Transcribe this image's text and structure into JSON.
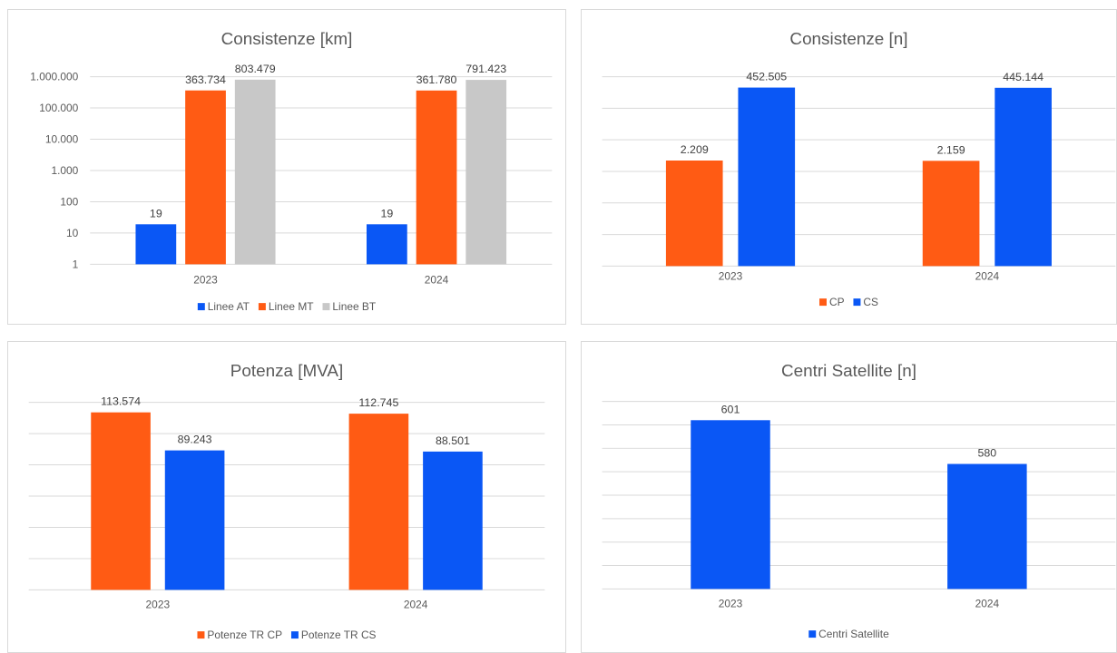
{
  "colors": {
    "blue": "#0a57f5",
    "orange": "#ff5b14",
    "gray": "#c8c8c8",
    "grid": "#d9d9d9",
    "text": "#595959"
  },
  "chart_data": [
    {
      "type": "bar",
      "title": "Consistenze [km]",
      "scale": "log",
      "ylim": [
        1,
        1000000
      ],
      "ytick_labels": [
        "1",
        "10",
        "100",
        "1.000",
        "10.000",
        "100.000",
        "1.000.000"
      ],
      "categories": [
        "2023",
        "2024"
      ],
      "series": [
        {
          "name": "Linee AT",
          "color": "#0a57f5",
          "values": [
            19,
            19
          ],
          "labels": [
            "19",
            "19"
          ]
        },
        {
          "name": "Linee MT",
          "color": "#ff5b14",
          "values": [
            363734,
            361780
          ],
          "labels": [
            "363.734",
            "361.780"
          ]
        },
        {
          "name": "Linee BT",
          "color": "#c8c8c8",
          "values": [
            803479,
            791423
          ],
          "labels": [
            "803.479",
            "791.423"
          ]
        }
      ],
      "grid": true,
      "legend": "bottom"
    },
    {
      "type": "bar",
      "title": "Consistenze [n]",
      "scale": "log",
      "ylim": [
        1,
        1000000
      ],
      "categories": [
        "2023",
        "2024"
      ],
      "series": [
        {
          "name": "CP",
          "color": "#ff5b14",
          "values": [
            2209,
            2159
          ],
          "labels": [
            "2.209",
            "2.159"
          ]
        },
        {
          "name": "CS",
          "color": "#0a57f5",
          "values": [
            452505,
            445144
          ],
          "labels": [
            "452.505",
            "445.144"
          ]
        }
      ],
      "grid": true,
      "legend": "bottom"
    },
    {
      "type": "bar",
      "title": "Potenza [MVA]",
      "scale": "linear",
      "ylim": [
        0,
        120000
      ],
      "categories": [
        "2023",
        "2024"
      ],
      "series": [
        {
          "name": "Potenze TR CP",
          "color": "#ff5b14",
          "values": [
            113574,
            112745
          ],
          "labels": [
            "113.574",
            "112.745"
          ]
        },
        {
          "name": "Potenze TR CS",
          "color": "#0a57f5",
          "values": [
            89243,
            88501
          ],
          "labels": [
            "89.243",
            "88.501"
          ]
        }
      ],
      "grid": true,
      "legend": "bottom"
    },
    {
      "type": "bar",
      "title": "Centri Satellite [n]",
      "scale": "linear",
      "ylim": [
        520,
        610
      ],
      "categories": [
        "2023",
        "2024"
      ],
      "series": [
        {
          "name": "Centri Satellite",
          "color": "#0a57f5",
          "values": [
            601,
            580
          ],
          "labels": [
            "601",
            "580"
          ]
        }
      ],
      "grid": true,
      "legend": "bottom"
    }
  ]
}
